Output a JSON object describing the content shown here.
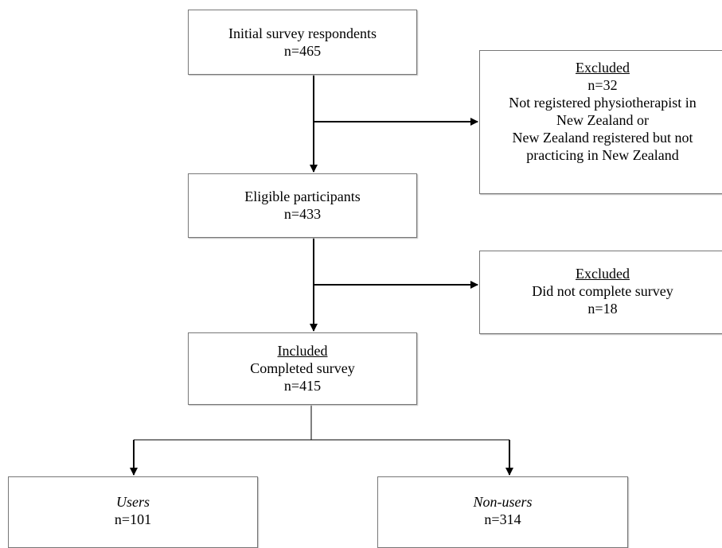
{
  "nodes": [
    {
      "lines": [
        "Initial survey respondents",
        "n=465"
      ]
    },
    {
      "lines": [
        "Excluded",
        "n=32",
        "Not registered physiotherapist in",
        "New Zealand or",
        "New Zealand registered but not",
        "practicing in New Zealand"
      ]
    },
    {
      "lines": [
        "Eligible participants",
        "n=433"
      ]
    },
    {
      "lines": [
        "Excluded",
        "Did not complete survey",
        "n=18"
      ]
    },
    {
      "lines": [
        "Included",
        "Completed survey",
        "n=415"
      ]
    },
    {
      "lines": [
        "Users",
        "n=101"
      ]
    },
    {
      "lines": [
        "Non-users",
        "n=314"
      ]
    }
  ]
}
